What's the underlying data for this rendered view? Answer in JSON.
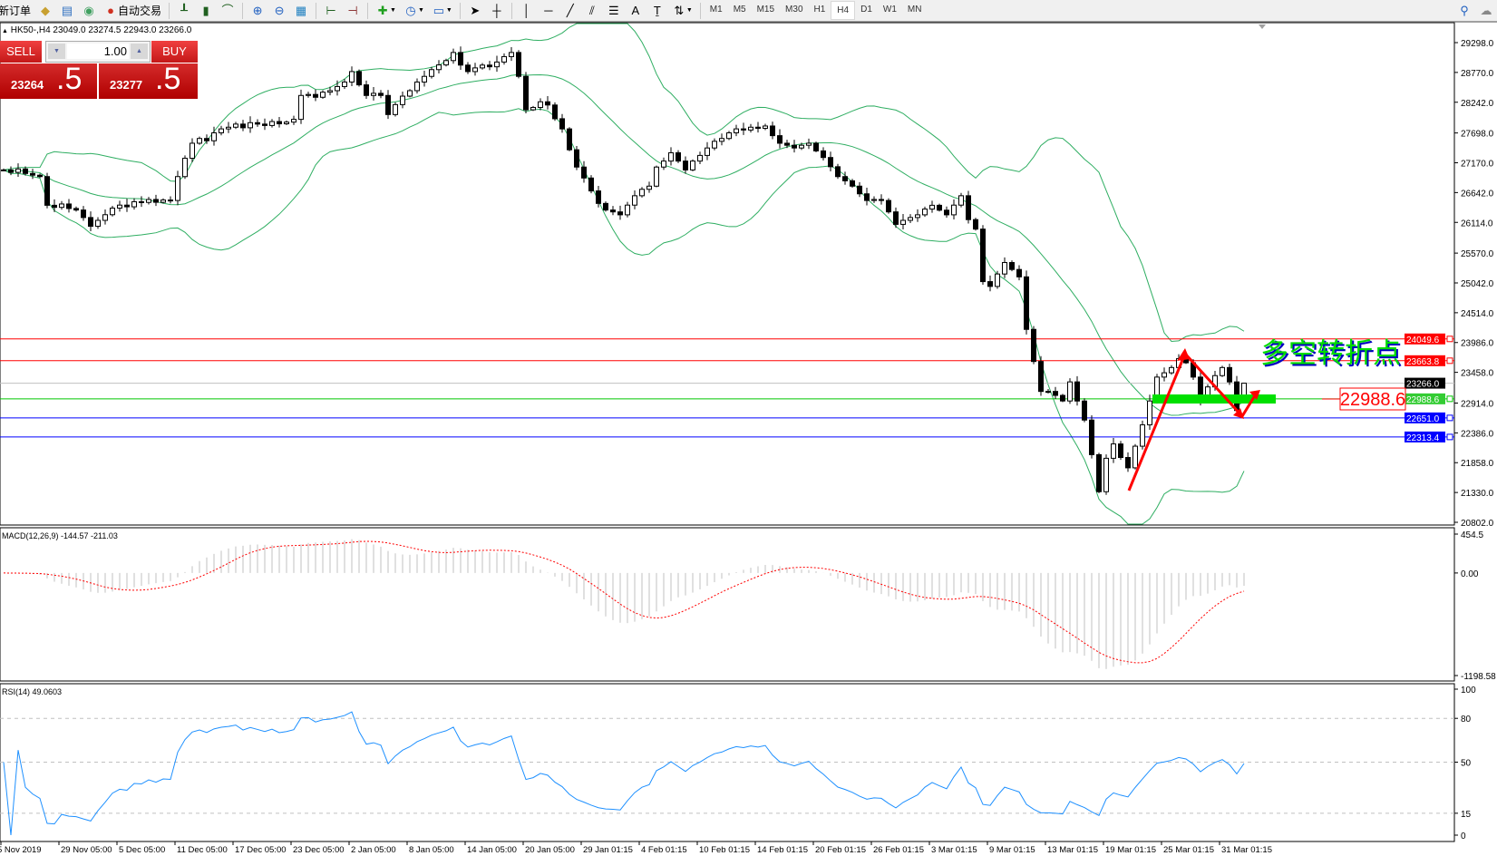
{
  "toolbar": {
    "new_order": "新订单",
    "auto_trading": "自动交易",
    "timeframes": [
      "M1",
      "M5",
      "M15",
      "M30",
      "H1",
      "H4",
      "D1",
      "W1",
      "MN"
    ],
    "active_timeframe": "H4",
    "icons": [
      "market-watch-icon",
      "navigator-icon",
      "signals-icon",
      "bar-chart-icon",
      "candlestick-icon",
      "line-chart-icon",
      "zoom-in-icon",
      "zoom-out-icon",
      "tile-windows-icon",
      "autoscroll-icon",
      "chart-shift-icon",
      "indicators-icon",
      "periods-icon",
      "templates-icon",
      "cursor-icon",
      "crosshair-icon",
      "vertical-line-icon",
      "horizontal-line-icon",
      "trendline-icon",
      "equidistant-channel-icon",
      "fibonacci-icon",
      "text-icon",
      "text-label-icon",
      "arrows-icon"
    ]
  },
  "header": {
    "symbol": "HK50-,H4",
    "ohlc": "23049.0 23274.5 22943.0 23266.0",
    "open": 23049.0,
    "high": 23274.5,
    "low": 22943.0,
    "close": 23266.0
  },
  "trade_panel": {
    "sell_label": "SELL",
    "buy_label": "BUY",
    "lot": "1.00",
    "sell_price_main": "23264",
    "sell_price_frac": ".5",
    "buy_price_main": "23277",
    "buy_price_frac": ".5"
  },
  "annotation": {
    "text": "多空转折点",
    "price_label": "22988.6"
  },
  "colors": {
    "bands": "#2fae62",
    "resistance": "#ff0000",
    "pivot": "#00c800",
    "support": "#0000ff",
    "current": "#c0c0c0",
    "rsi": "#1e90ff",
    "macd_signal": "#ff0000",
    "macd_hist": "#c0c0c0",
    "annotation_text": "#00dd00",
    "arrow": "#ff0000"
  },
  "chart_data": [
    {
      "type": "candlestick",
      "title": "HK50-,H4",
      "indicator": "Bollinger Bands",
      "ylim": [
        20802.0,
        29298.0
      ],
      "y_ticks": [
        "29298.0",
        "28770.0",
        "28242.0",
        "27698.0",
        "27170.0",
        "26642.0",
        "26114.0",
        "25570.0",
        "25042.0",
        "24514.0",
        "23986.0",
        "23458.0",
        "22914.0",
        "22386.0",
        "21858.0",
        "21330.0",
        "20802.0"
      ],
      "x_ticks": [
        "5 Nov 2019",
        "29 Nov 05:00",
        "5 Dec 05:00",
        "11 Dec 05:00",
        "17 Dec 05:00",
        "23 Dec 05:00",
        "2 Jan 05:00",
        "8 Jan 05:00",
        "14 Jan 05:00",
        "20 Jan 05:00",
        "29 Jan 01:15",
        "4 Feb 01:15",
        "10 Feb 01:15",
        "14 Feb 01:15",
        "20 Feb 01:15",
        "26 Feb 01:15",
        "3 Mar 01:15",
        "9 Mar 01:15",
        "13 Mar 01:15",
        "19 Mar 01:15",
        "25 Mar 01:15",
        "31 Mar 01:15"
      ],
      "close": [
        27043,
        27000,
        27060,
        26980,
        26950,
        26925,
        26417,
        26380,
        26440,
        26360,
        26333,
        26200,
        26045,
        26150,
        26250,
        26367,
        26420,
        26390,
        26480,
        26468,
        26520,
        26470,
        26510,
        26502,
        26925,
        27250,
        27516,
        27600,
        27560,
        27700,
        27770,
        27800,
        27855,
        27790,
        27880,
        27855,
        27830,
        27900,
        27860,
        27890,
        27939,
        28362,
        28380,
        28330,
        28420,
        28447,
        28520,
        28600,
        28785,
        28550,
        28362,
        28400,
        28362,
        28024,
        28200,
        28350,
        28447,
        28600,
        28700,
        28820,
        28903,
        28980,
        29123,
        28900,
        28785,
        28850,
        28900,
        28870,
        28954,
        29050,
        29123,
        28700,
        28108,
        28150,
        28250,
        28193,
        27950,
        27770,
        27400,
        27094,
        26900,
        26671,
        26450,
        26333,
        26300,
        26248,
        26420,
        26586,
        26700,
        26756,
        27094,
        27200,
        27347,
        27200,
        27043,
        27200,
        27300,
        27432,
        27550,
        27600,
        27700,
        27770,
        27750,
        27800,
        27780,
        27821,
        27650,
        27516,
        27480,
        27432,
        27480,
        27516,
        27380,
        27263,
        27100,
        26925,
        26850,
        26756,
        26620,
        26502,
        26520,
        26502,
        26300,
        26079,
        26150,
        26200,
        26248,
        26350,
        26417,
        26330,
        26248,
        26420,
        26586,
        26163,
        25995,
        25065,
        24980,
        25200,
        25403,
        25280,
        25149,
        24219,
        23650,
        23120,
        23120,
        23050,
        22951,
        23289,
        22950,
        22613,
        22000,
        21344,
        21936,
        22190,
        21950,
        21767,
        22150,
        22528,
        22951,
        23374,
        23450,
        23543,
        23700,
        23627,
        23374,
        22951,
        23200,
        23400,
        23543,
        23289,
        22782,
        23266
      ],
      "levels": [
        {
          "value": 24049.6,
          "label": "24049.6",
          "kind": "resistance"
        },
        {
          "value": 23663.8,
          "label": "23663.8",
          "kind": "resistance"
        },
        {
          "value": 23266.0,
          "label": "23266.0",
          "kind": "current"
        },
        {
          "value": 22988.6,
          "label": "22988.6",
          "kind": "pivot"
        },
        {
          "value": 22651.0,
          "label": "22651.0",
          "kind": "support"
        },
        {
          "value": 22313.4,
          "label": "22313.4",
          "kind": "support"
        }
      ]
    },
    {
      "type": "bar",
      "title": "MACD(12,26,9) -144.57 -211.03",
      "params": [
        12,
        26,
        9
      ],
      "main": -144.57,
      "signal": -211.03,
      "ylim": [
        -1198.58,
        454.5
      ],
      "y_ticks": [
        "454.5",
        "0.00",
        "-1198.58"
      ]
    },
    {
      "type": "line",
      "title": "RSI(14) 49.0603",
      "period": 14,
      "value": 49.0603,
      "ylim": [
        0,
        100
      ],
      "y_ticks": [
        "100",
        "80",
        "50",
        "15",
        "0"
      ],
      "levels": [
        80,
        50,
        15
      ]
    }
  ]
}
